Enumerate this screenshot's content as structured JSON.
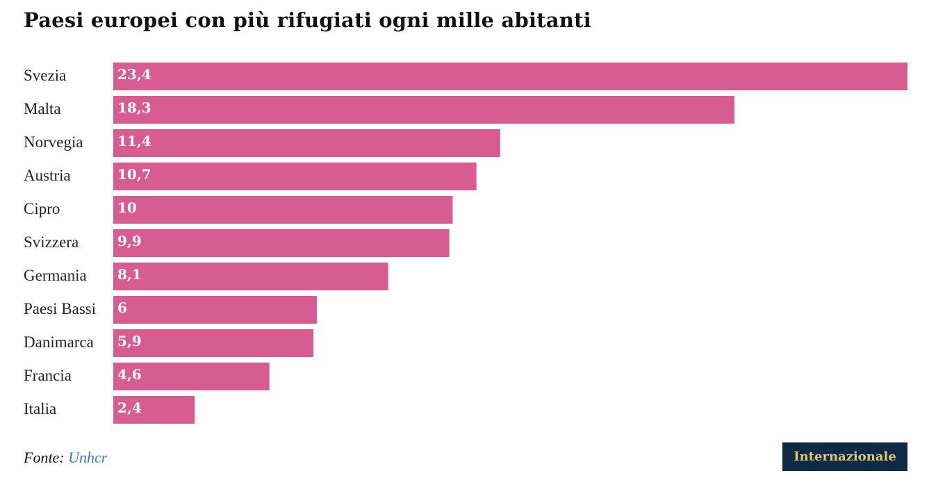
{
  "title": "Paesi europei con più rifugiati ogni mille abitanti",
  "source": {
    "prefix": "Fonte:",
    "link_text": "Unhcr"
  },
  "logo": {
    "text": "Internazionale"
  },
  "colors": {
    "bar": "#d65c91",
    "logo_background": "#0d2a47",
    "logo_text": "#e8c66a",
    "link": "#2f7fc1"
  },
  "chart_data": {
    "type": "bar",
    "orientation": "horizontal",
    "title": "Paesi europei con più rifugiati ogni mille abitanti",
    "categories": [
      "Svezia",
      "Malta",
      "Norvegia",
      "Austria",
      "Cipro",
      "Svizzera",
      "Germania",
      "Paesi Bassi",
      "Danimarca",
      "Francia",
      "Italia"
    ],
    "values": [
      23.4,
      18.3,
      11.4,
      10.7,
      10,
      9.9,
      8.1,
      6,
      5.9,
      4.6,
      2.4
    ],
    "value_labels": [
      "23,4",
      "18,3",
      "11,4",
      "10,7",
      "10",
      "9,9",
      "8,1",
      "6",
      "5,9",
      "4,6",
      "2,4"
    ],
    "xlim": [
      0,
      23.4
    ],
    "grid": false,
    "legend": "none"
  }
}
